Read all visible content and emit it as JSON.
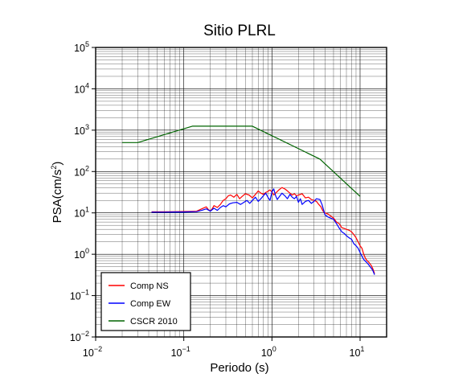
{
  "chart_data": {
    "type": "line",
    "title": "Sitio PLRL",
    "xlabel": "Periodo (s)",
    "ylabel_main": "PSA(cm/s",
    "ylabel_sup": "2",
    "ylabel_tail": ")",
    "x_scale": "log",
    "y_scale": "log",
    "xlim": [
      0.01,
      20
    ],
    "ylim": [
      0.01,
      100000
    ],
    "grid": true,
    "legend_position": "bottom-left",
    "x_ticks": [
      {
        "value": 0.01,
        "base": "10",
        "exp": "−2"
      },
      {
        "value": 0.1,
        "base": "10",
        "exp": "−1"
      },
      {
        "value": 1,
        "base": "10",
        "exp": "0"
      },
      {
        "value": 10,
        "base": "10",
        "exp": "1"
      }
    ],
    "y_ticks": [
      {
        "value": 0.01,
        "base": "10",
        "exp": "−2"
      },
      {
        "value": 0.1,
        "base": "10",
        "exp": "−1"
      },
      {
        "value": 1,
        "base": "10",
        "exp": "0"
      },
      {
        "value": 10,
        "base": "10",
        "exp": "1"
      },
      {
        "value": 100,
        "base": "10",
        "exp": "2"
      },
      {
        "value": 1000,
        "base": "10",
        "exp": "3"
      },
      {
        "value": 10000,
        "base": "10",
        "exp": "4"
      },
      {
        "value": 100000,
        "base": "10",
        "exp": "5"
      }
    ],
    "series": [
      {
        "name": "Comp NS",
        "color": "#ff0000",
        "points": [
          [
            0.043,
            10.6
          ],
          [
            0.06,
            10.6
          ],
          [
            0.08,
            10.7
          ],
          [
            0.1,
            10.8
          ],
          [
            0.12,
            10.9
          ],
          [
            0.14,
            11.0
          ],
          [
            0.16,
            12.5
          ],
          [
            0.18,
            14.0
          ],
          [
            0.19,
            12.0
          ],
          [
            0.2,
            11.2
          ],
          [
            0.21,
            12.5
          ],
          [
            0.22,
            15.0
          ],
          [
            0.24,
            13.5
          ],
          [
            0.26,
            16.0
          ],
          [
            0.28,
            20.0
          ],
          [
            0.3,
            22.0
          ],
          [
            0.32,
            26.0
          ],
          [
            0.34,
            27.0
          ],
          [
            0.37,
            24.0
          ],
          [
            0.4,
            28.0
          ],
          [
            0.43,
            22.0
          ],
          [
            0.46,
            25.0
          ],
          [
            0.5,
            29.0
          ],
          [
            0.55,
            27.0
          ],
          [
            0.6,
            23.0
          ],
          [
            0.65,
            28.0
          ],
          [
            0.7,
            34.0
          ],
          [
            0.75,
            30.0
          ],
          [
            0.8,
            28.0
          ],
          [
            0.85,
            31.0
          ],
          [
            0.9,
            33.0
          ],
          [
            0.95,
            36.0
          ],
          [
            1.0,
            32.0
          ],
          [
            1.05,
            27.0
          ],
          [
            1.1,
            30.0
          ],
          [
            1.2,
            36.0
          ],
          [
            1.3,
            41.0
          ],
          [
            1.4,
            38.0
          ],
          [
            1.5,
            34.0
          ],
          [
            1.6,
            30.0
          ],
          [
            1.7,
            27.0
          ],
          [
            1.8,
            29.0
          ],
          [
            1.9,
            26.0
          ],
          [
            2.0,
            27.0
          ],
          [
            2.2,
            29.0
          ],
          [
            2.4,
            23.0
          ],
          [
            2.6,
            24.0
          ],
          [
            2.8,
            21.0
          ],
          [
            3.0,
            20.0
          ],
          [
            3.2,
            19.0
          ],
          [
            3.4,
            16.0
          ],
          [
            3.6,
            14.0
          ],
          [
            3.8,
            11.0
          ],
          [
            4.0,
            10.0
          ],
          [
            4.3,
            9.5
          ],
          [
            4.6,
            8.5
          ],
          [
            5.0,
            7.5
          ],
          [
            5.4,
            6.0
          ],
          [
            5.8,
            5.5
          ],
          [
            6.2,
            4.4
          ],
          [
            6.6,
            4.2
          ],
          [
            7.0,
            4.0
          ],
          [
            7.5,
            3.8
          ],
          [
            8.0,
            3.5
          ],
          [
            8.5,
            3.0
          ],
          [
            9.0,
            2.5
          ],
          [
            9.5,
            2.0
          ],
          [
            10.0,
            1.6
          ],
          [
            10.5,
            1.4
          ],
          [
            11.0,
            1.0
          ],
          [
            11.5,
            0.8
          ],
          [
            12.0,
            0.7
          ],
          [
            12.5,
            0.65
          ],
          [
            13.0,
            0.58
          ],
          [
            13.5,
            0.52
          ],
          [
            14.0,
            0.44
          ],
          [
            14.6,
            0.34
          ]
        ]
      },
      {
        "name": "Comp EW",
        "color": "#0000ff",
        "points": [
          [
            0.043,
            10.4
          ],
          [
            0.06,
            10.4
          ],
          [
            0.08,
            10.5
          ],
          [
            0.1,
            10.5
          ],
          [
            0.12,
            10.6
          ],
          [
            0.14,
            10.7
          ],
          [
            0.16,
            11.5
          ],
          [
            0.18,
            12.5
          ],
          [
            0.2,
            11.0
          ],
          [
            0.22,
            13.0
          ],
          [
            0.24,
            11.5
          ],
          [
            0.26,
            13.5
          ],
          [
            0.28,
            15.0
          ],
          [
            0.3,
            14.0
          ],
          [
            0.33,
            16.5
          ],
          [
            0.36,
            17.5
          ],
          [
            0.4,
            18.0
          ],
          [
            0.44,
            16.0
          ],
          [
            0.48,
            18.0
          ],
          [
            0.52,
            20.0
          ],
          [
            0.56,
            17.0
          ],
          [
            0.6,
            20.0
          ],
          [
            0.65,
            24.0
          ],
          [
            0.7,
            19.0
          ],
          [
            0.75,
            22.0
          ],
          [
            0.8,
            26.0
          ],
          [
            0.85,
            30.0
          ],
          [
            0.9,
            24.0
          ],
          [
            0.95,
            20.0
          ],
          [
            1.0,
            32.0
          ],
          [
            1.05,
            38.0
          ],
          [
            1.1,
            26.0
          ],
          [
            1.15,
            21.0
          ],
          [
            1.2,
            24.0
          ],
          [
            1.3,
            30.0
          ],
          [
            1.4,
            26.0
          ],
          [
            1.5,
            22.0
          ],
          [
            1.6,
            28.0
          ],
          [
            1.7,
            24.0
          ],
          [
            1.8,
            22.0
          ],
          [
            1.9,
            25.0
          ],
          [
            2.0,
            18.0
          ],
          [
            2.1,
            22.0
          ],
          [
            2.2,
            16.0
          ],
          [
            2.4,
            19.0
          ],
          [
            2.6,
            20.0
          ],
          [
            2.8,
            17.0
          ],
          [
            3.0,
            19.0
          ],
          [
            3.2,
            22.0
          ],
          [
            3.5,
            21.0
          ],
          [
            3.7,
            16.0
          ],
          [
            4.0,
            9.0
          ],
          [
            4.3,
            8.0
          ],
          [
            4.6,
            7.5
          ],
          [
            5.0,
            7.0
          ],
          [
            5.4,
            5.5
          ],
          [
            5.8,
            4.3
          ],
          [
            6.2,
            3.5
          ],
          [
            6.6,
            3.2
          ],
          [
            7.0,
            2.8
          ],
          [
            7.5,
            2.5
          ],
          [
            8.0,
            2.3
          ],
          [
            8.5,
            1.8
          ],
          [
            9.0,
            1.6
          ],
          [
            9.5,
            1.4
          ],
          [
            10.0,
            1.1
          ],
          [
            10.5,
            0.9
          ],
          [
            11.0,
            0.75
          ],
          [
            11.5,
            0.68
          ],
          [
            12.0,
            0.62
          ],
          [
            12.5,
            0.56
          ],
          [
            13.0,
            0.5
          ],
          [
            13.5,
            0.45
          ],
          [
            14.0,
            0.4
          ],
          [
            14.6,
            0.32
          ]
        ]
      },
      {
        "name": "CSCR 2010",
        "color": "#006400",
        "points": [
          [
            0.02,
            500
          ],
          [
            0.03,
            500
          ],
          [
            0.125,
            1250
          ],
          [
            0.6,
            1250
          ],
          [
            3.5,
            200
          ],
          [
            10.0,
            25
          ]
        ]
      }
    ]
  }
}
